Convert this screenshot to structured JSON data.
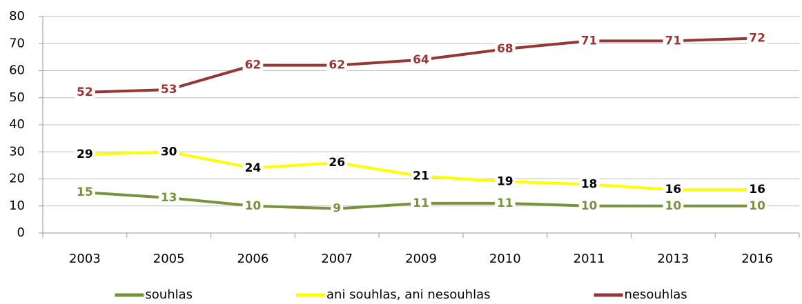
{
  "chart_data": {
    "type": "line",
    "categories": [
      "2003",
      "2005",
      "2006",
      "2007",
      "2009",
      "2010",
      "2011",
      "2013",
      "2016"
    ],
    "series": [
      {
        "name": "souhlas",
        "color": "#77933c",
        "values": [
          15,
          13,
          10,
          9,
          11,
          11,
          10,
          10,
          10
        ]
      },
      {
        "name": "ani souhlas, ani nesouhlas",
        "color": "#ffff00",
        "values": [
          29,
          30,
          24,
          26,
          21,
          19,
          18,
          16,
          16
        ]
      },
      {
        "name": "nesouhlas",
        "color": "#953735",
        "values": [
          52,
          53,
          62,
          62,
          64,
          68,
          71,
          71,
          72
        ]
      }
    ],
    "label_colors": [
      "#77933c",
      "#000000",
      "#953735"
    ],
    "ylim": [
      0,
      80
    ],
    "yticks": [
      0,
      10,
      20,
      30,
      40,
      50,
      60,
      70,
      80
    ],
    "grid": true,
    "legend": "bottom"
  }
}
